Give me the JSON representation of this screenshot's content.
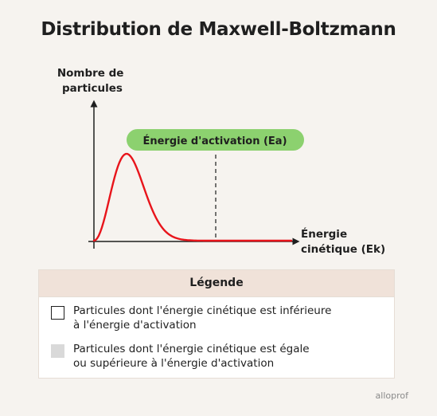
{
  "title": "Distribution de Maxwell-Boltzmann",
  "chart_data": {
    "type": "area",
    "title": "Distribution de Maxwell-Boltzmann",
    "ylabel_lines": [
      "Nombre de",
      "particules"
    ],
    "xlabel_lines": [
      "Énergie",
      "cinétique (Ek)"
    ],
    "activation_label": "Énergie d'activation (Ea)",
    "curve_color": "#e8141b",
    "shaded_color": "#d9d9d9",
    "pill_color": "#8cd16f",
    "ticks_shown": false,
    "grid": false
  },
  "legend": {
    "title": "Légende",
    "items": [
      {
        "text_line1": "Particules dont l'énergie cinétique est inférieure",
        "text_line2": "à l'énergie d'activation",
        "swatch": "#ffffff"
      },
      {
        "text_line1": "Particules dont l'énergie cinétique est égale",
        "text_line2": "ou supérieure à l'énergie d'activation",
        "swatch": "#d9d9d9"
      }
    ]
  },
  "brand": "alloprof"
}
